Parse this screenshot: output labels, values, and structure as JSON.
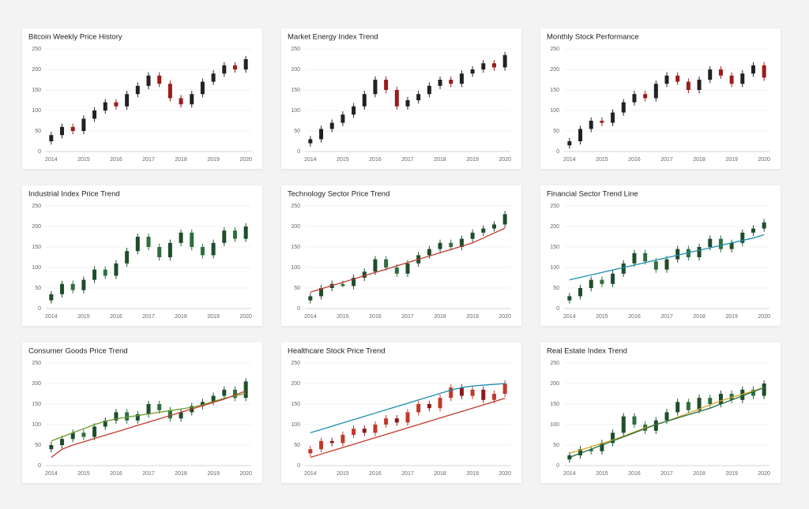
{
  "chart_data": [
    {
      "type": "candlestick",
      "title": "Bitcoin Weekly Price History",
      "up_color": "#222222",
      "down_color": "#9b1c1c",
      "ylim": [
        0,
        250
      ],
      "yticks": [
        0,
        50,
        100,
        150,
        200,
        250
      ],
      "grid": true,
      "categories": [
        "2014",
        null,
        null,
        "2015",
        null,
        null,
        "2016",
        null,
        null,
        "2017",
        null,
        null,
        "2018",
        null,
        null,
        "2019",
        null,
        null,
        "2020"
      ],
      "open": [
        25,
        40,
        60,
        50,
        80,
        100,
        120,
        110,
        140,
        160,
        185,
        165,
        130,
        115,
        140,
        170,
        190,
        210,
        200
      ],
      "high": [
        48,
        68,
        68,
        88,
        108,
        128,
        128,
        148,
        168,
        193,
        193,
        173,
        138,
        148,
        178,
        198,
        218,
        218,
        233
      ],
      "low": [
        17,
        32,
        42,
        42,
        72,
        92,
        102,
        102,
        132,
        152,
        157,
        122,
        107,
        107,
        132,
        162,
        182,
        192,
        192
      ],
      "close": [
        40,
        60,
        50,
        80,
        100,
        120,
        110,
        140,
        160,
        185,
        165,
        130,
        115,
        140,
        170,
        190,
        210,
        200,
        225
      ]
    },
    {
      "type": "candlestick",
      "title": "Market Energy Index Trend",
      "up_color": "#222222",
      "down_color": "#9b1c1c",
      "ylim": [
        0,
        250
      ],
      "yticks": [
        0,
        50,
        100,
        150,
        200,
        250
      ],
      "grid": true,
      "categories": [
        "2014",
        null,
        null,
        "2015",
        null,
        null,
        "2016",
        null,
        null,
        "2017",
        null,
        null,
        "2018",
        null,
        null,
        "2019",
        null,
        null,
        "2020"
      ],
      "open": [
        20,
        30,
        55,
        70,
        90,
        110,
        140,
        175,
        150,
        110,
        125,
        140,
        160,
        175,
        165,
        190,
        200,
        215,
        205
      ],
      "high": [
        38,
        63,
        78,
        98,
        118,
        148,
        183,
        183,
        158,
        133,
        148,
        168,
        183,
        183,
        198,
        208,
        223,
        223,
        243
      ],
      "low": [
        12,
        22,
        47,
        62,
        82,
        102,
        132,
        142,
        102,
        102,
        117,
        132,
        152,
        157,
        157,
        182,
        192,
        197,
        197
      ],
      "close": [
        30,
        55,
        70,
        90,
        110,
        140,
        175,
        150,
        110,
        125,
        140,
        160,
        175,
        165,
        190,
        200,
        215,
        205,
        235
      ]
    },
    {
      "type": "candlestick",
      "title": "Monthly Stock Performance",
      "up_color": "#222222",
      "down_color": "#9b1c1c",
      "ylim": [
        0,
        250
      ],
      "yticks": [
        0,
        50,
        100,
        150,
        200,
        250
      ],
      "grid": true,
      "categories": [
        "2014",
        null,
        null,
        "2015",
        null,
        null,
        "2016",
        null,
        null,
        "2017",
        null,
        null,
        "2018",
        null,
        null,
        "2019",
        null,
        null,
        "2020"
      ],
      "open": [
        15,
        25,
        55,
        75,
        70,
        95,
        120,
        140,
        130,
        165,
        185,
        170,
        150,
        175,
        200,
        185,
        165,
        190,
        210
      ],
      "high": [
        33,
        63,
        83,
        83,
        103,
        128,
        148,
        148,
        173,
        193,
        193,
        178,
        183,
        208,
        208,
        193,
        198,
        218,
        218
      ],
      "low": [
        7,
        17,
        47,
        62,
        62,
        87,
        112,
        122,
        122,
        157,
        162,
        142,
        142,
        167,
        177,
        157,
        157,
        182,
        172
      ],
      "close": [
        25,
        55,
        75,
        70,
        95,
        120,
        140,
        130,
        165,
        185,
        170,
        150,
        175,
        200,
        185,
        165,
        190,
        210,
        180
      ]
    },
    {
      "type": "candlestick",
      "title": "Industrial Index Price Trend",
      "up_color": "#1f4d2c",
      "down_color": "#2f6e3f",
      "ylim": [
        0,
        250
      ],
      "yticks": [
        0,
        50,
        100,
        150,
        200,
        250
      ],
      "grid": true,
      "categories": [
        "2014",
        null,
        null,
        "2015",
        null,
        null,
        "2016",
        null,
        null,
        "2017",
        null,
        null,
        "2018",
        null,
        null,
        "2019",
        null,
        null,
        "2020"
      ],
      "open": [
        20,
        35,
        60,
        45,
        70,
        95,
        80,
        110,
        140,
        175,
        150,
        125,
        160,
        185,
        150,
        130,
        160,
        190,
        170
      ],
      "high": [
        43,
        68,
        68,
        78,
        103,
        103,
        118,
        148,
        183,
        183,
        158,
        168,
        193,
        193,
        158,
        168,
        198,
        198,
        208
      ],
      "low": [
        12,
        27,
        37,
        37,
        62,
        72,
        72,
        102,
        132,
        142,
        117,
        117,
        152,
        142,
        122,
        122,
        152,
        162,
        162
      ],
      "close": [
        35,
        60,
        45,
        70,
        95,
        80,
        110,
        140,
        175,
        150,
        125,
        160,
        185,
        150,
        130,
        160,
        190,
        170,
        200
      ]
    },
    {
      "type": "candlestick",
      "title": "Technology Sector Price Trend",
      "up_color": "#1f4d2c",
      "down_color": "#2f6e3f",
      "ylim": [
        0,
        250
      ],
      "yticks": [
        0,
        50,
        100,
        150,
        200,
        250
      ],
      "grid": true,
      "categories": [
        "2014",
        null,
        null,
        "2015",
        null,
        null,
        "2016",
        null,
        null,
        "2017",
        null,
        null,
        "2018",
        null,
        null,
        "2019",
        null,
        null,
        "2020"
      ],
      "open": [
        20,
        30,
        50,
        60,
        55,
        75,
        90,
        120,
        100,
        85,
        110,
        130,
        145,
        160,
        150,
        170,
        185,
        195,
        205
      ],
      "high": [
        38,
        58,
        68,
        68,
        83,
        98,
        128,
        128,
        108,
        118,
        138,
        153,
        168,
        168,
        178,
        193,
        203,
        213,
        238
      ],
      "low": [
        12,
        22,
        42,
        52,
        47,
        67,
        82,
        92,
        77,
        77,
        102,
        122,
        137,
        142,
        142,
        162,
        177,
        187,
        197
      ],
      "close": [
        30,
        50,
        60,
        55,
        75,
        90,
        120,
        100,
        85,
        110,
        130,
        145,
        160,
        150,
        170,
        185,
        195,
        205,
        230
      ],
      "lines": [
        {
          "color": "#c0392b",
          "values": [
            40,
            48,
            56,
            64,
            72,
            80,
            88,
            96,
            104,
            112,
            120,
            128,
            136,
            144,
            152,
            160,
            172,
            184,
            196
          ]
        }
      ]
    },
    {
      "type": "candlestick",
      "title": "Financial Sector Trend Line",
      "up_color": "#1f4d2c",
      "down_color": "#2f6e3f",
      "ylim": [
        0,
        250
      ],
      "yticks": [
        0,
        50,
        100,
        150,
        200,
        250
      ],
      "grid": true,
      "categories": [
        "2014",
        null,
        null,
        "2015",
        null,
        null,
        "2016",
        null,
        null,
        "2017",
        null,
        null,
        "2018",
        null,
        null,
        "2019",
        null,
        null,
        "2020"
      ],
      "open": [
        20,
        30,
        50,
        70,
        60,
        85,
        110,
        135,
        115,
        95,
        120,
        145,
        125,
        150,
        170,
        145,
        160,
        185,
        195
      ],
      "high": [
        38,
        58,
        78,
        78,
        93,
        118,
        143,
        143,
        123,
        128,
        153,
        153,
        158,
        178,
        178,
        168,
        193,
        203,
        218
      ],
      "low": [
        12,
        22,
        42,
        52,
        52,
        77,
        102,
        107,
        87,
        87,
        112,
        117,
        117,
        142,
        137,
        137,
        152,
        177,
        187
      ],
      "close": [
        30,
        50,
        70,
        60,
        85,
        110,
        135,
        115,
        95,
        120,
        145,
        125,
        150,
        170,
        145,
        160,
        185,
        195,
        210
      ],
      "lines": [
        {
          "color": "#1b8fb0",
          "values": [
            70,
            76,
            82,
            88,
            94,
            100,
            106,
            112,
            118,
            124,
            130,
            136,
            142,
            148,
            154,
            160,
            166,
            172,
            180
          ]
        }
      ]
    },
    {
      "type": "candlestick",
      "title": "Consumer Goods Price Trend",
      "up_color": "#1f4d2c",
      "down_color": "#2f6e3f",
      "ylim": [
        0,
        250
      ],
      "yticks": [
        0,
        50,
        100,
        150,
        200,
        250
      ],
      "grid": true,
      "categories": [
        "2014",
        null,
        null,
        "2015",
        null,
        null,
        "2016",
        null,
        null,
        "2017",
        null,
        null,
        "2018",
        null,
        null,
        "2019",
        null,
        null,
        "2020"
      ],
      "open": [
        40,
        50,
        65,
        80,
        70,
        95,
        110,
        130,
        110,
        125,
        150,
        135,
        115,
        130,
        145,
        155,
        170,
        185,
        165
      ],
      "high": [
        58,
        73,
        88,
        88,
        103,
        118,
        138,
        138,
        133,
        158,
        158,
        143,
        138,
        153,
        163,
        178,
        193,
        193,
        213
      ],
      "low": [
        32,
        42,
        57,
        62,
        62,
        87,
        102,
        102,
        102,
        117,
        127,
        107,
        107,
        122,
        137,
        147,
        162,
        157,
        157
      ],
      "close": [
        50,
        65,
        80,
        70,
        95,
        110,
        130,
        110,
        125,
        150,
        135,
        115,
        130,
        145,
        155,
        170,
        185,
        165,
        205
      ],
      "lines": [
        {
          "color": "#6a9a2a",
          "values": [
            60,
            70,
            80,
            90,
            100,
            108,
            114,
            118,
            122,
            126,
            130,
            134,
            138,
            142,
            148,
            156,
            164,
            170,
            176
          ]
        },
        {
          "color": "#c0392b",
          "values": [
            20,
            40,
            50,
            58,
            66,
            74,
            82,
            90,
            98,
            106,
            114,
            122,
            130,
            138,
            146,
            154,
            162,
            172,
            182
          ]
        }
      ]
    },
    {
      "type": "candlestick",
      "title": "Healthcare Stock Price Trend",
      "up_color": "#c0392b",
      "down_color": "#8b1a1a",
      "ylim": [
        0,
        250
      ],
      "yticks": [
        0,
        50,
        100,
        150,
        200,
        250
      ],
      "grid": true,
      "categories": [
        "2014",
        null,
        null,
        "2015",
        null,
        null,
        "2016",
        null,
        null,
        "2017",
        null,
        null,
        "2018",
        null,
        null,
        "2019",
        null,
        null,
        "2020"
      ],
      "open": [
        30,
        40,
        60,
        55,
        75,
        90,
        80,
        100,
        115,
        105,
        130,
        150,
        140,
        165,
        190,
        170,
        185,
        160,
        175
      ],
      "high": [
        48,
        68,
        68,
        83,
        98,
        98,
        108,
        123,
        123,
        138,
        158,
        158,
        173,
        198,
        198,
        193,
        193,
        183,
        208
      ],
      "low": [
        22,
        32,
        47,
        47,
        67,
        72,
        72,
        92,
        97,
        97,
        122,
        132,
        132,
        157,
        162,
        162,
        152,
        152,
        167
      ],
      "close": [
        40,
        60,
        55,
        75,
        90,
        80,
        100,
        115,
        105,
        130,
        150,
        140,
        165,
        190,
        170,
        185,
        160,
        175,
        200
      ],
      "lines": [
        {
          "color": "#1b8fb0",
          "values": [
            80,
            88,
            96,
            104,
            112,
            120,
            128,
            136,
            144,
            152,
            160,
            168,
            176,
            184,
            190,
            194,
            196,
            198,
            200
          ]
        },
        {
          "color": "#c0392b",
          "values": [
            20,
            28,
            36,
            44,
            52,
            60,
            68,
            76,
            84,
            92,
            100,
            108,
            116,
            124,
            132,
            140,
            148,
            156,
            164
          ]
        }
      ]
    },
    {
      "type": "candlestick",
      "title": "Real Estate Index Trend",
      "up_color": "#1f4d2c",
      "down_color": "#2f6e3f",
      "ylim": [
        0,
        250
      ],
      "yticks": [
        0,
        50,
        100,
        150,
        200,
        250
      ],
      "grid": true,
      "categories": [
        "2014",
        null,
        null,
        "2015",
        null,
        null,
        "2016",
        null,
        null,
        "2017",
        null,
        null,
        "2018",
        null,
        null,
        "2019",
        null,
        null,
        "2020"
      ],
      "open": [
        15,
        25,
        40,
        35,
        55,
        80,
        120,
        100,
        85,
        110,
        130,
        155,
        135,
        165,
        150,
        175,
        160,
        185,
        170
      ],
      "high": [
        33,
        48,
        48,
        63,
        88,
        128,
        128,
        108,
        118,
        138,
        163,
        163,
        173,
        173,
        183,
        183,
        193,
        193,
        208
      ],
      "low": [
        7,
        17,
        27,
        27,
        47,
        72,
        92,
        77,
        77,
        102,
        122,
        127,
        127,
        142,
        142,
        152,
        152,
        162,
        162
      ],
      "close": [
        25,
        40,
        35,
        55,
        80,
        120,
        100,
        85,
        110,
        130,
        155,
        135,
        165,
        150,
        175,
        160,
        185,
        170,
        200
      ],
      "lines": [
        {
          "color": "#d4a62a",
          "values": [
            30,
            38,
            46,
            54,
            62,
            72,
            82,
            92,
            100,
            108,
            118,
            128,
            138,
            148,
            158,
            166,
            174,
            182,
            190
          ]
        },
        {
          "color": "#1f6b3a",
          "values": [
            20,
            30,
            40,
            50,
            60,
            70,
            80,
            90,
            100,
            108,
            116,
            124,
            132,
            140,
            150,
            160,
            170,
            180,
            190
          ]
        }
      ]
    }
  ]
}
